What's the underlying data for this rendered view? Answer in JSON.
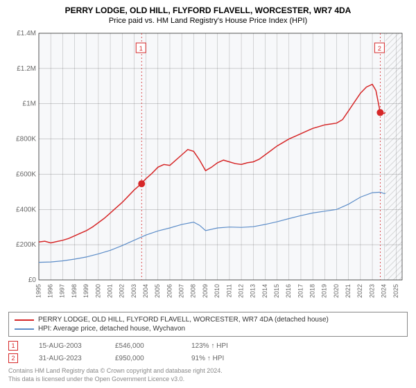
{
  "title": "PERRY LODGE, OLD HILL, FLYFORD FLAVELL, WORCESTER, WR7 4DA",
  "subtitle": "Price paid vs. HM Land Registry's House Price Index (HPI)",
  "chart": {
    "type": "line",
    "background_color": "#ffffff",
    "plot_bg": "#f7f8fa",
    "grid_color": "#444444",
    "grid_width": 0.4,
    "axis_color": "#000000",
    "x": {
      "ticks": [
        "1995",
        "1996",
        "1997",
        "1998",
        "1999",
        "2000",
        "2001",
        "2002",
        "2003",
        "2004",
        "2005",
        "2006",
        "2007",
        "2008",
        "2009",
        "2010",
        "2011",
        "2012",
        "2013",
        "2014",
        "2015",
        "2016",
        "2017",
        "2018",
        "2019",
        "2020",
        "2021",
        "2022",
        "2023",
        "2024",
        "2025"
      ],
      "tick_fontsize": 9,
      "tick_rotation": -90,
      "tick_color": "#666666"
    },
    "y": {
      "ticks": [
        0,
        200000,
        400000,
        600000,
        800000,
        1000000,
        1200000,
        1400000
      ],
      "labels": [
        "£0",
        "£200K",
        "£400K",
        "£600K",
        "£800K",
        "£1M",
        "£1.2M",
        "£1.4M"
      ],
      "tick_fontsize": 10,
      "tick_color": "#666666",
      "ylim": [
        0,
        1400000
      ]
    },
    "forecast_start_year": 2024.1,
    "forecast_hatch_color": "#999999",
    "series": [
      {
        "name": "property",
        "label": "PERRY LODGE, OLD HILL, FLYFORD FLAVELL, WORCESTER, WR7 4DA (detached house)",
        "color": "#d62728",
        "width": 1.5,
        "data": [
          [
            1995,
            215
          ],
          [
            1995.5,
            220
          ],
          [
            1996,
            210
          ],
          [
            1996.5,
            218
          ],
          [
            1997,
            225
          ],
          [
            1997.5,
            235
          ],
          [
            1998,
            250
          ],
          [
            1998.5,
            265
          ],
          [
            1999,
            280
          ],
          [
            1999.5,
            300
          ],
          [
            2000,
            325
          ],
          [
            2000.5,
            350
          ],
          [
            2001,
            380
          ],
          [
            2001.5,
            410
          ],
          [
            2002,
            440
          ],
          [
            2002.5,
            475
          ],
          [
            2003,
            510
          ],
          [
            2003.5,
            540
          ],
          [
            2004,
            575
          ],
          [
            2004.5,
            605
          ],
          [
            2005,
            640
          ],
          [
            2005.5,
            655
          ],
          [
            2006,
            650
          ],
          [
            2006.5,
            680
          ],
          [
            2007,
            710
          ],
          [
            2007.5,
            740
          ],
          [
            2008,
            730
          ],
          [
            2008.5,
            680
          ],
          [
            2009,
            620
          ],
          [
            2009.5,
            640
          ],
          [
            2010,
            665
          ],
          [
            2010.5,
            680
          ],
          [
            2011,
            670
          ],
          [
            2011.5,
            660
          ],
          [
            2012,
            655
          ],
          [
            2012.5,
            665
          ],
          [
            2013,
            670
          ],
          [
            2013.5,
            685
          ],
          [
            2014,
            710
          ],
          [
            2014.5,
            735
          ],
          [
            2015,
            760
          ],
          [
            2015.5,
            780
          ],
          [
            2016,
            800
          ],
          [
            2016.5,
            815
          ],
          [
            2017,
            830
          ],
          [
            2017.5,
            845
          ],
          [
            2018,
            860
          ],
          [
            2018.5,
            870
          ],
          [
            2019,
            880
          ],
          [
            2019.5,
            885
          ],
          [
            2020,
            890
          ],
          [
            2020.5,
            910
          ],
          [
            2021,
            960
          ],
          [
            2021.5,
            1010
          ],
          [
            2022,
            1060
          ],
          [
            2022.5,
            1095
          ],
          [
            2023,
            1110
          ],
          [
            2023.3,
            1075
          ],
          [
            2023.66,
            950
          ],
          [
            2024,
            945
          ],
          [
            2024.1,
            950
          ]
        ]
      },
      {
        "name": "hpi",
        "label": "HPI: Average price, detached house, Wychavon",
        "color": "#5b8cc8",
        "width": 1.2,
        "data": [
          [
            1995,
            100
          ],
          [
            1996,
            102
          ],
          [
            1997,
            108
          ],
          [
            1998,
            118
          ],
          [
            1999,
            130
          ],
          [
            2000,
            148
          ],
          [
            2001,
            168
          ],
          [
            2002,
            195
          ],
          [
            2003,
            225
          ],
          [
            2004,
            255
          ],
          [
            2005,
            278
          ],
          [
            2006,
            295
          ],
          [
            2007,
            315
          ],
          [
            2008,
            328
          ],
          [
            2008.5,
            310
          ],
          [
            2009,
            280
          ],
          [
            2010,
            295
          ],
          [
            2011,
            300
          ],
          [
            2012,
            298
          ],
          [
            2013,
            302
          ],
          [
            2014,
            315
          ],
          [
            2015,
            330
          ],
          [
            2016,
            348
          ],
          [
            2017,
            365
          ],
          [
            2018,
            380
          ],
          [
            2019,
            390
          ],
          [
            2020,
            400
          ],
          [
            2021,
            430
          ],
          [
            2022,
            470
          ],
          [
            2023,
            495
          ],
          [
            2023.66,
            498
          ],
          [
            2024,
            490
          ],
          [
            2024.1,
            492
          ]
        ]
      }
    ],
    "markers": [
      {
        "id": "1",
        "year": 2003.63,
        "value": 546,
        "color": "#d62728",
        "dot_size": 5
      },
      {
        "id": "2",
        "year": 2023.66,
        "value": 950,
        "color": "#d62728",
        "dot_size": 5
      }
    ],
    "marker_line_color": "#d62728",
    "marker_line_dash": "2,3"
  },
  "legend": {
    "rows": [
      {
        "color": "#d62728",
        "text": "PERRY LODGE, OLD HILL, FLYFORD FLAVELL, WORCESTER, WR7 4DA (detached house)"
      },
      {
        "color": "#5b8cc8",
        "text": "HPI: Average price, detached house, Wychavon"
      }
    ]
  },
  "points": [
    {
      "badge": "1",
      "date": "15-AUG-2003",
      "price": "£546,000",
      "pct": "123% ↑ HPI"
    },
    {
      "badge": "2",
      "date": "31-AUG-2023",
      "price": "£950,000",
      "pct": "91% ↑ HPI"
    }
  ],
  "footer": {
    "line1": "Contains HM Land Registry data © Crown copyright and database right 2024.",
    "line2": "This data is licensed under the Open Government Licence v3.0."
  }
}
